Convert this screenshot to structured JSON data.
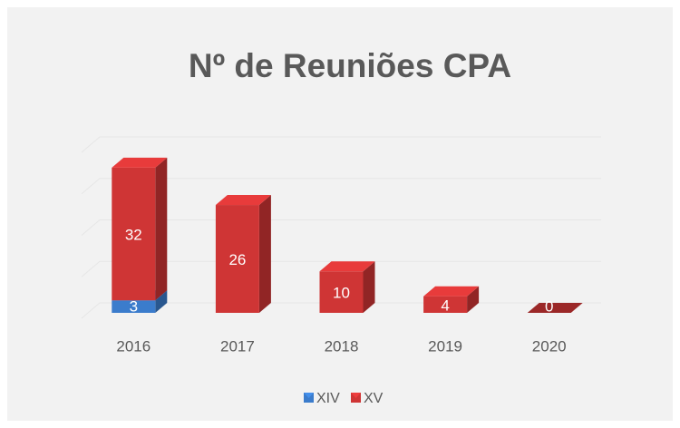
{
  "chart_data": {
    "type": "bar3d_stacked",
    "title": "Nº de Reuniões CPA",
    "categories": [
      "2016",
      "2017",
      "2018",
      "2019",
      "2020"
    ],
    "series": [
      {
        "name": "XIV",
        "color": "#3b7ccc",
        "values": [
          3,
          null,
          null,
          null,
          null
        ]
      },
      {
        "name": "XV",
        "color": "#cf3535",
        "values": [
          32,
          26,
          10,
          4,
          0
        ]
      }
    ],
    "ylim": [
      0,
      40
    ],
    "yticks": [
      0,
      10,
      20,
      30,
      40
    ],
    "grid": true,
    "legend": "bottom"
  }
}
